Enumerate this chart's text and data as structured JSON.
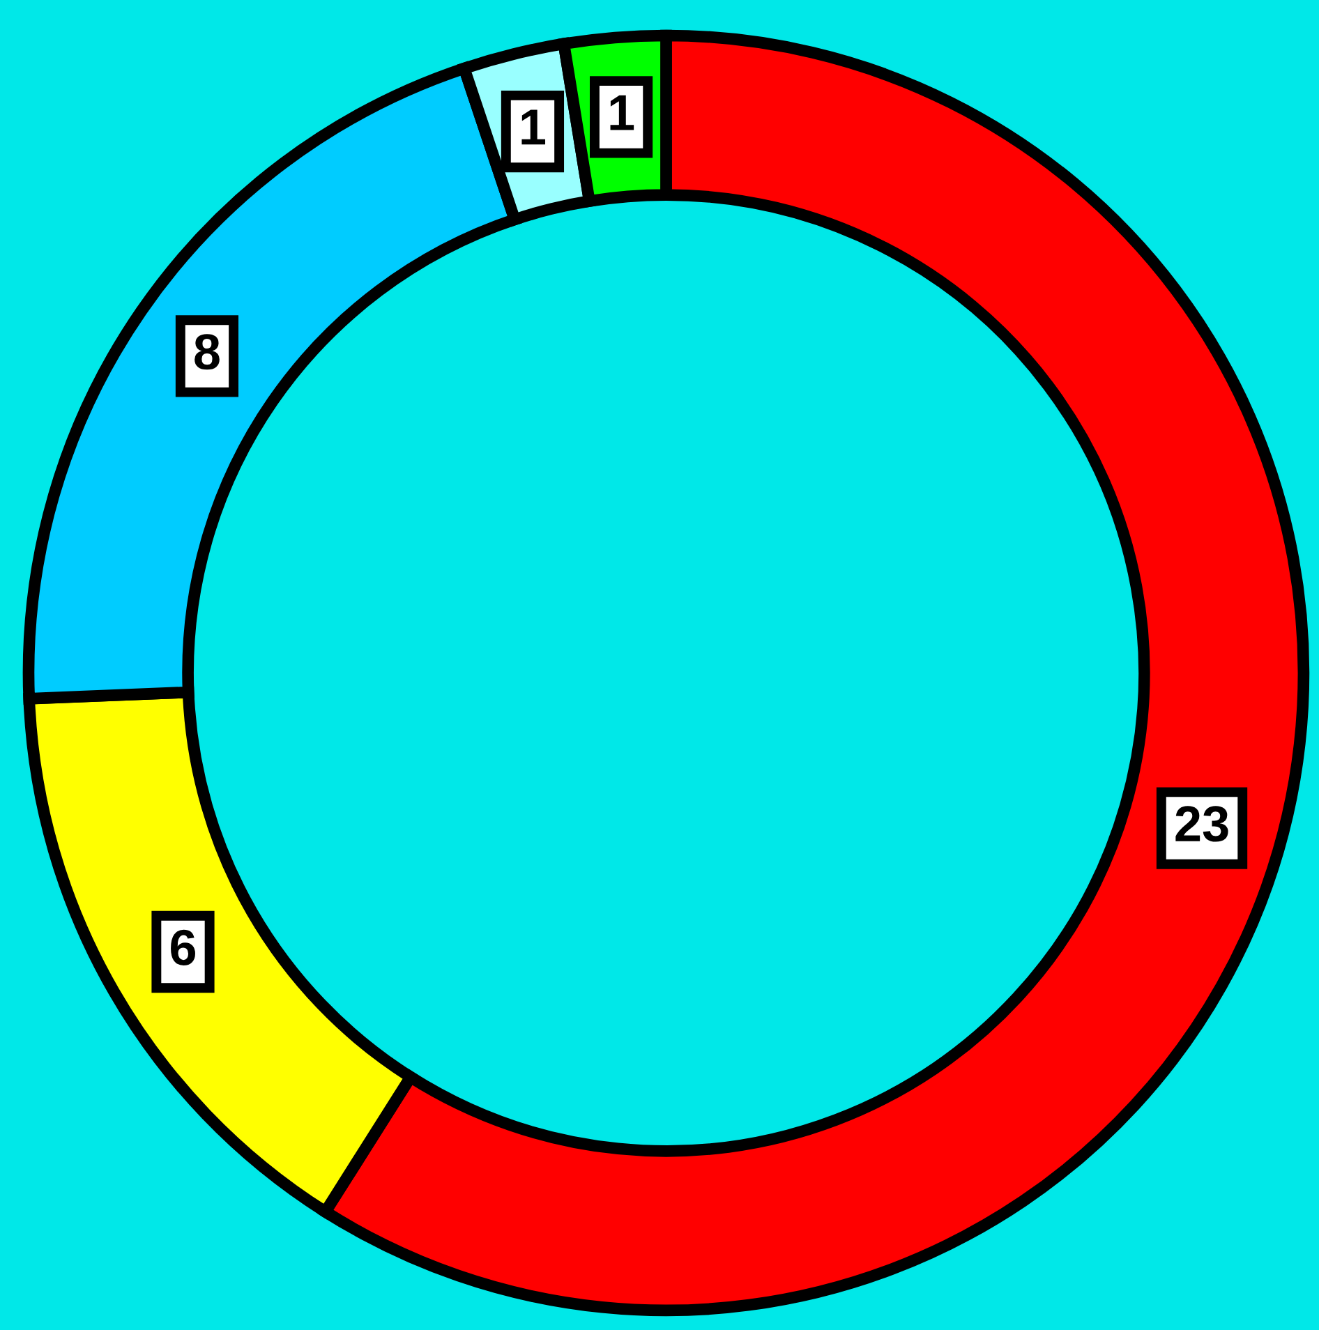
{
  "chart_data": {
    "type": "donut",
    "categories": [
      null,
      null,
      null,
      null,
      null
    ],
    "values": [
      23,
      6,
      8,
      1,
      1
    ],
    "colors": [
      "#ff0000",
      "#ffff00",
      "#00ccff",
      "#99ffff",
      "#00ff00"
    ],
    "data_labels": true
  }
}
